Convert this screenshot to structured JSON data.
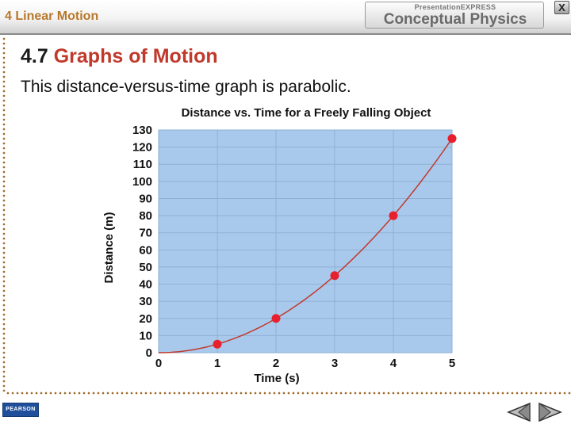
{
  "header": {
    "chapter_title": "4 Linear Motion",
    "brand_top": "PresentationEXPRESS",
    "brand_main": "Conceptual Physics",
    "close_label": "X"
  },
  "slide": {
    "section_number": "4.7",
    "section_title": "Graphs of Motion",
    "body_text": "This distance-versus-time graph is parabolic."
  },
  "footer": {
    "logo_text": "PEARSON",
    "prev_icon": "triangle-left-icon",
    "next_icon": "triangle-right-icon"
  },
  "colors": {
    "plot_background": "#a9c9ec",
    "grid": "#8fb0d6",
    "curve": "#c0392b",
    "point": "#e8202e",
    "title_red": "#c0392b",
    "chapter_orange": "#b8782a"
  },
  "chart_data": {
    "type": "scatter",
    "title": "Distance vs. Time for a Freely Falling Object",
    "xlabel": "Time (s)",
    "ylabel": "Distance (m)",
    "xlim": [
      0,
      5
    ],
    "ylim": [
      0,
      130
    ],
    "x_ticks": [
      0,
      1,
      2,
      3,
      4,
      5
    ],
    "y_ticks": [
      0,
      10,
      20,
      30,
      40,
      50,
      60,
      70,
      80,
      90,
      100,
      110,
      120,
      130
    ],
    "grid": true,
    "series": [
      {
        "x": [
          0,
          1,
          2,
          3,
          4,
          5
        ],
        "y": [
          0,
          5,
          20,
          45,
          80,
          125
        ],
        "markers": [
          false,
          true,
          true,
          true,
          true,
          true
        ]
      }
    ],
    "trend": "parabolic curve through points"
  }
}
